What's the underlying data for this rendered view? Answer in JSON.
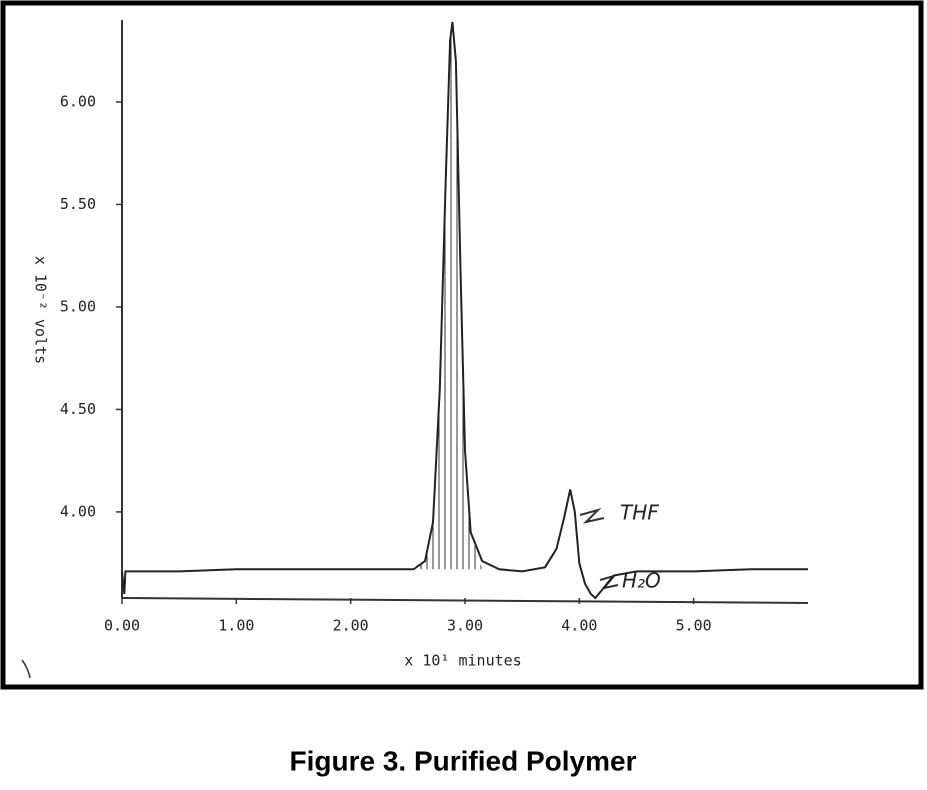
{
  "chart_data": {
    "type": "line",
    "title": "Figure 3. Purified Polymer",
    "x_label": "x 10¹ minutes",
    "y_label": "x 10⁻² volts",
    "x": [
      0,
      0.02,
      0.03,
      0.5,
      1.0,
      2.0,
      2.55,
      2.65,
      2.72,
      2.78,
      2.83,
      2.87,
      2.89,
      2.92,
      2.96,
      3.0,
      3.05,
      3.15,
      3.3,
      3.5,
      3.7,
      3.8,
      3.87,
      3.92,
      3.96,
      4.0,
      4.05,
      4.1,
      4.14,
      4.2,
      4.3,
      4.5,
      5.0,
      5.5,
      6.0
    ],
    "values": [
      3.71,
      3.6,
      3.71,
      3.71,
      3.72,
      3.72,
      3.72,
      3.76,
      3.95,
      4.6,
      5.6,
      6.3,
      6.39,
      6.2,
      5.2,
      4.3,
      3.9,
      3.76,
      3.72,
      3.71,
      3.73,
      3.82,
      3.98,
      4.11,
      4.0,
      3.75,
      3.65,
      3.6,
      3.58,
      3.62,
      3.69,
      3.71,
      3.71,
      3.72,
      3.72
    ],
    "color": "#222222",
    "xlim": [
      0,
      6.0
    ],
    "ylim": [
      3.58,
      6.4
    ],
    "xticks": [
      {
        "value": 0,
        "label": "0.00"
      },
      {
        "value": 1,
        "label": "1.00"
      },
      {
        "value": 2,
        "label": "2.00"
      },
      {
        "value": 3,
        "label": "3.00"
      },
      {
        "value": 4,
        "label": "4.00"
      },
      {
        "value": 5,
        "label": "5.00"
      }
    ],
    "yticks": [
      {
        "value": 4,
        "label": "4.00"
      },
      {
        "value": 4.5,
        "label": "4.50"
      },
      {
        "value": 5,
        "label": "5.00"
      },
      {
        "value": 5.5,
        "label": "5.50"
      },
      {
        "value": 6,
        "label": "6.00"
      }
    ],
    "annotations": [
      "THF",
      "H₂O"
    ]
  }
}
